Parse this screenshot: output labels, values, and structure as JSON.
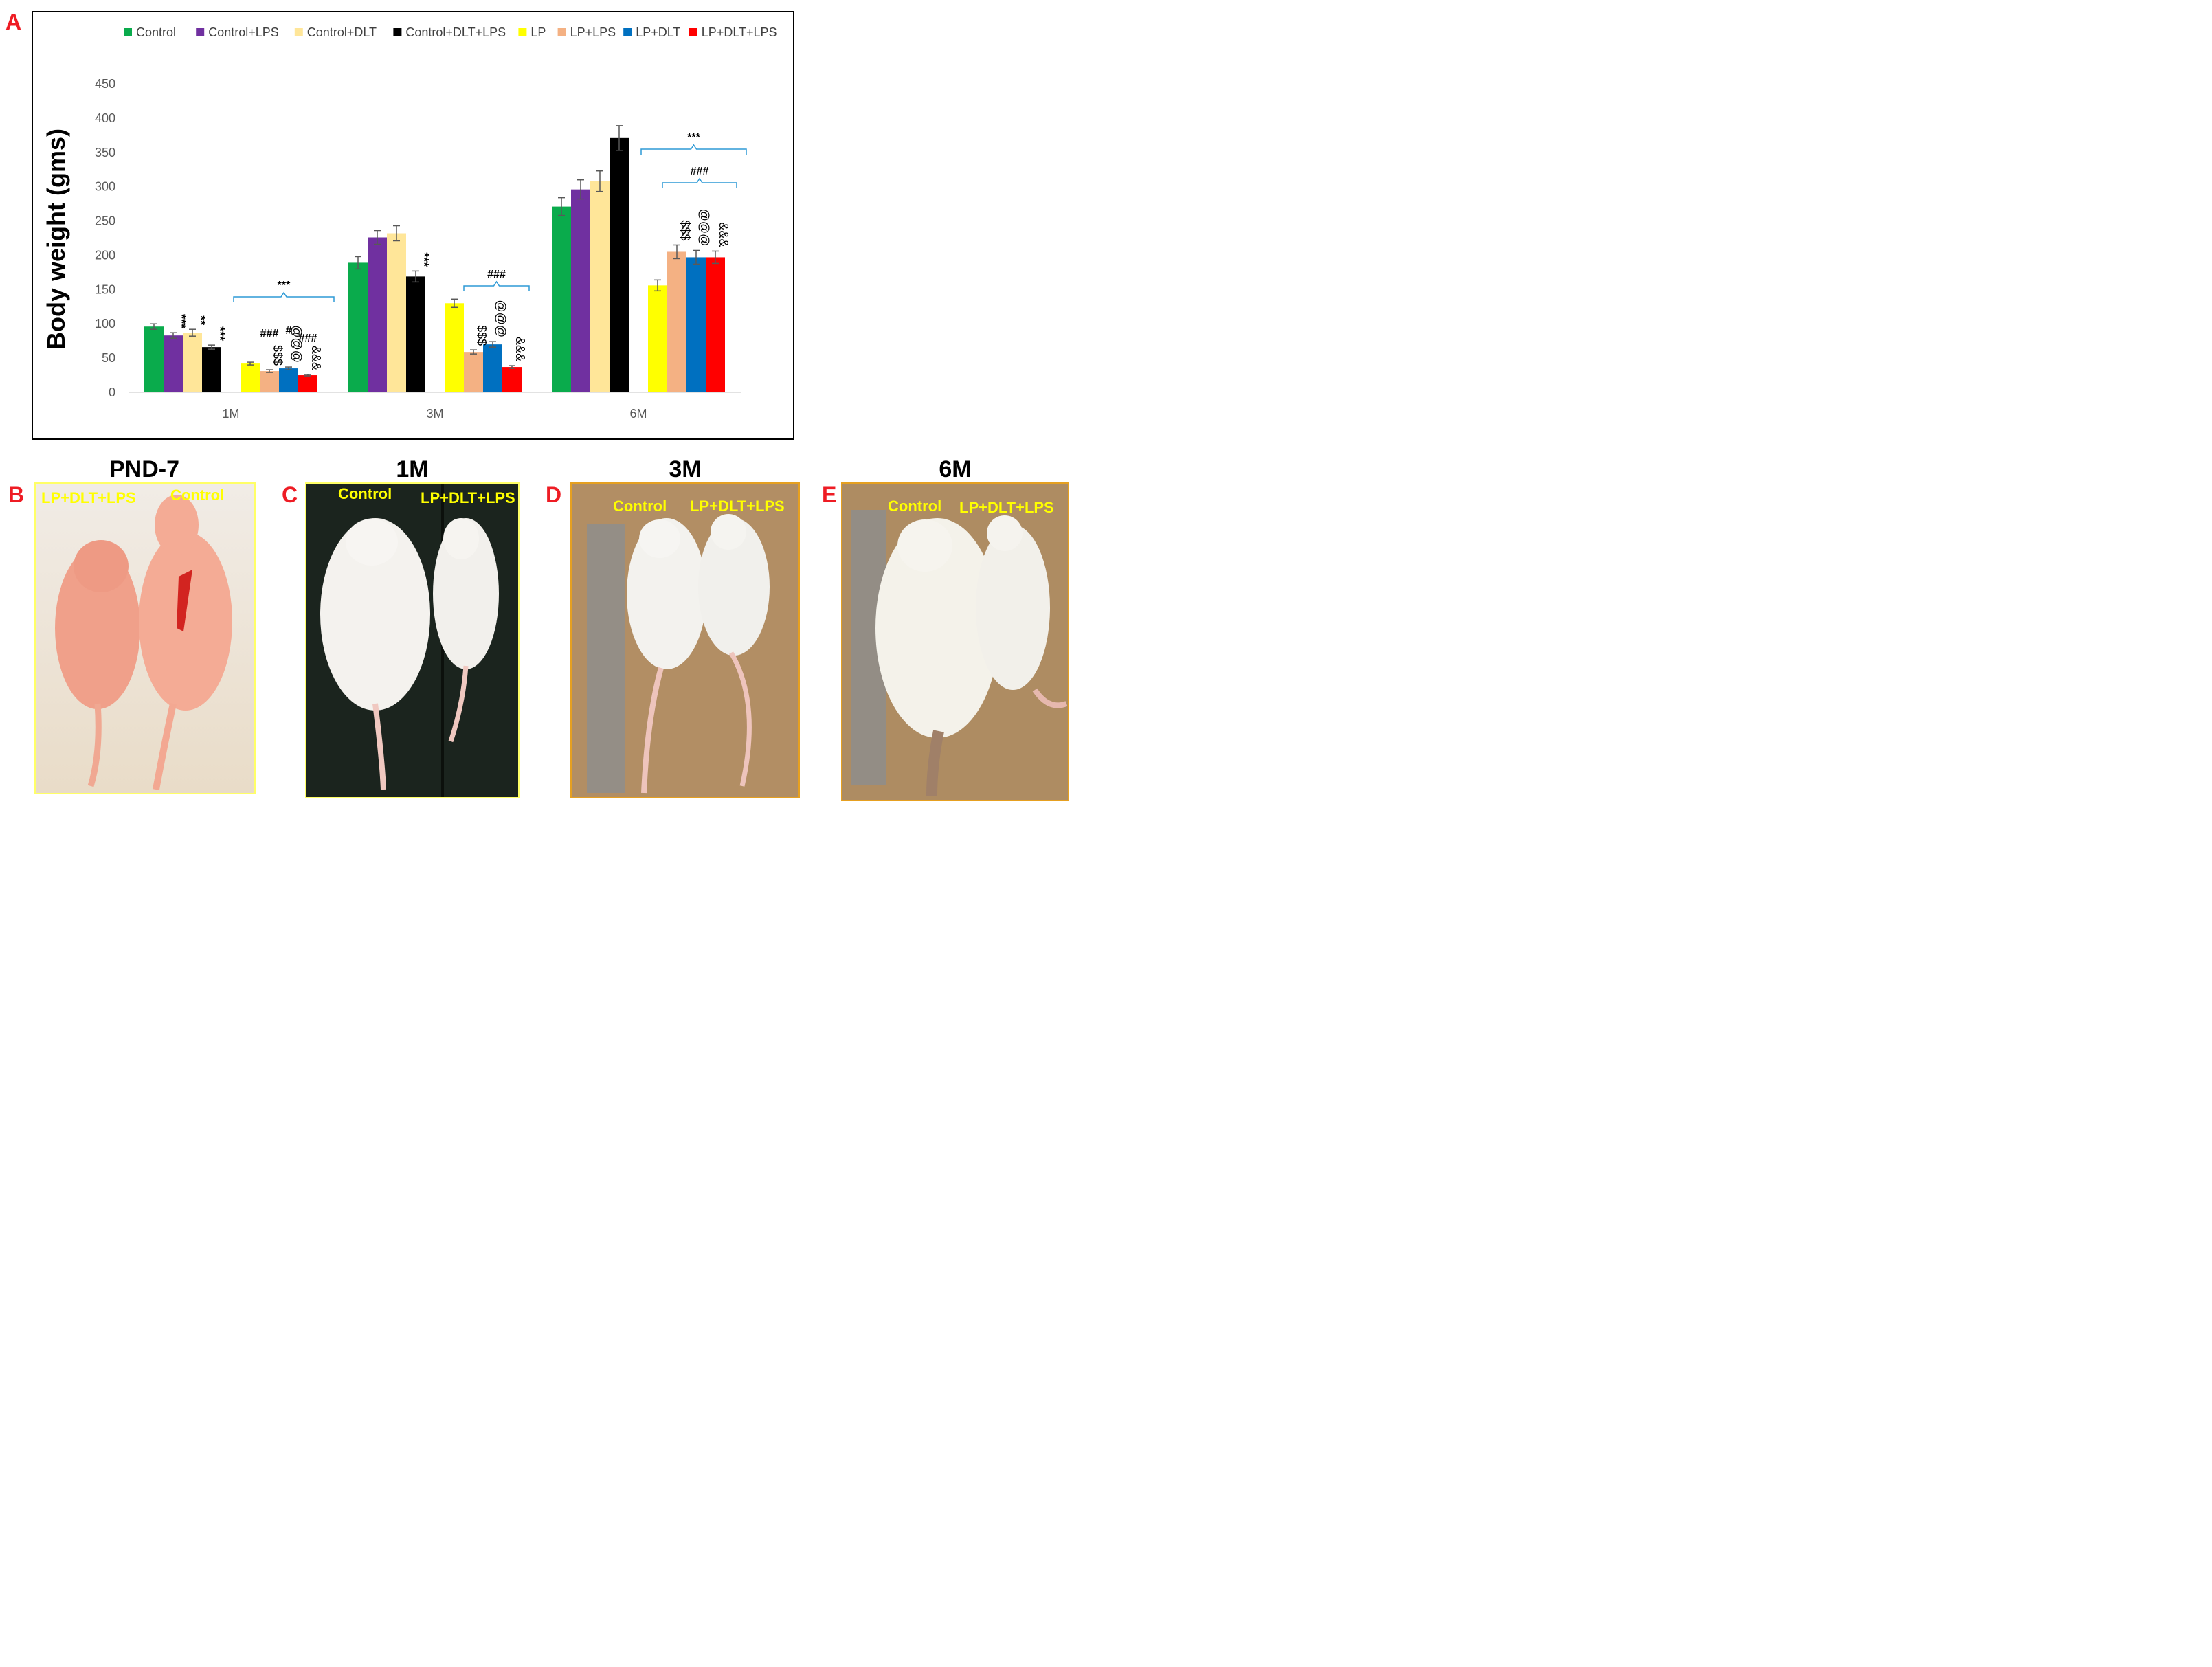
{
  "panels": {
    "a": "A",
    "b": "B",
    "c": "C",
    "d": "D",
    "e": "E"
  },
  "chart_data": {
    "type": "bar",
    "ylabel": "Body weight (gms)",
    "xlabel": "",
    "ylim": [
      0,
      450
    ],
    "yticks": [
      0,
      50,
      100,
      150,
      200,
      250,
      300,
      350,
      400,
      450
    ],
    "categories": [
      "1M",
      "3M",
      "6M"
    ],
    "legend_position": "top",
    "series": [
      {
        "name": "Control",
        "color": "#0aab4c",
        "values": [
          96,
          189,
          271
        ],
        "errors": [
          4,
          9,
          13
        ]
      },
      {
        "name": "Control+LPS",
        "color": "#7030a0",
        "values": [
          83,
          226,
          296
        ],
        "errors": [
          4,
          10,
          14
        ]
      },
      {
        "name": "Control+DLT",
        "color": "#ffe699",
        "values": [
          87,
          232,
          308
        ],
        "errors": [
          5,
          11,
          15
        ]
      },
      {
        "name": "Control+DLT+LPS",
        "color": "#000000",
        "values": [
          66,
          169,
          371
        ],
        "errors": [
          3,
          8,
          18
        ]
      },
      {
        "name": "LP",
        "color": "#ffff00",
        "values": [
          42,
          130,
          156
        ],
        "errors": [
          2,
          6,
          8
        ]
      },
      {
        "name": "LP+LPS",
        "color": "#f4b183",
        "values": [
          31,
          59,
          205
        ],
        "errors": [
          2,
          3,
          10
        ]
      },
      {
        "name": "LP+DLT",
        "color": "#0070c0",
        "values": [
          35,
          70,
          197
        ],
        "errors": [
          2,
          4,
          10
        ]
      },
      {
        "name": "LP+DLT+LPS",
        "color": "#ff0000",
        "values": [
          25,
          37,
          197
        ],
        "errors": [
          1,
          2,
          9
        ]
      }
    ],
    "bar_annotations": [
      {
        "category": 0,
        "series": 1,
        "text": "***"
      },
      {
        "category": 0,
        "series": 2,
        "text": "**"
      },
      {
        "category": 0,
        "series": 3,
        "text": "***"
      },
      {
        "category": 0,
        "series": 5,
        "text": "$$$"
      },
      {
        "category": 0,
        "series": 5,
        "text": "###"
      },
      {
        "category": 0,
        "series": 6,
        "text": "@@@"
      },
      {
        "category": 0,
        "series": 6,
        "text": "#"
      },
      {
        "category": 0,
        "series": 7,
        "text": "&&&"
      },
      {
        "category": 0,
        "series": 7,
        "text": "###"
      },
      {
        "category": 1,
        "series": 3,
        "text": "***"
      },
      {
        "category": 1,
        "series": 5,
        "text": "$$$"
      },
      {
        "category": 1,
        "series": 6,
        "text": "@@@"
      },
      {
        "category": 1,
        "series": 7,
        "text": "&&&"
      },
      {
        "category": 2,
        "series": 5,
        "text": "$$$"
      },
      {
        "category": 2,
        "series": 6,
        "text": "@@@"
      },
      {
        "category": 2,
        "series": 7,
        "text": "&&&"
      }
    ],
    "brackets": [
      {
        "category": 0,
        "text": "***"
      },
      {
        "category": 1,
        "text": "###"
      },
      {
        "category": 2,
        "text": "***"
      },
      {
        "category": 2,
        "text": "###"
      }
    ]
  },
  "photos": [
    {
      "title": "PND-7",
      "left_label": "LP+DLT+LPS",
      "right_label": "Control",
      "bg": "#f3e6d8",
      "border": "#ffff66"
    },
    {
      "title": "1M",
      "left_label": "Control",
      "right_label": "LP+DLT+LPS",
      "bg": "#1f2a22",
      "border": "#ffff66"
    },
    {
      "title": "3M",
      "left_label": "Control",
      "right_label": "LP+DLT+LPS",
      "bg": "#b08e66",
      "border": "#e6a020"
    },
    {
      "title": "6M",
      "left_label": "Control",
      "right_label": "LP+DLT+LPS",
      "bg": "#ad8c64",
      "border": "#e6a020"
    }
  ]
}
